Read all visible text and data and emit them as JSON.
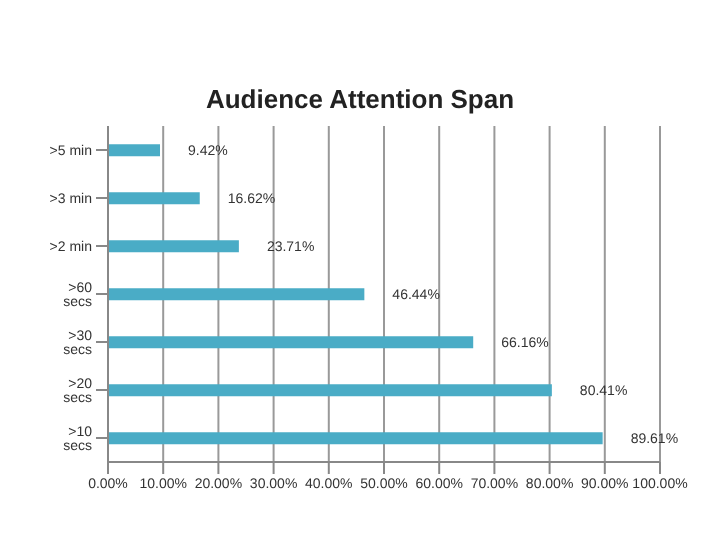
{
  "chart_data": {
    "type": "bar",
    "orientation": "horizontal",
    "title": "Audience Attention Span",
    "categories": [
      ">5 min",
      ">3 min",
      ">2 min",
      ">60 secs",
      ">30 secs",
      ">20 secs",
      ">10 secs"
    ],
    "values": [
      9.42,
      16.62,
      23.71,
      46.44,
      66.16,
      80.41,
      89.61
    ],
    "value_labels": [
      "9.42%",
      "16.62%",
      "23.71%",
      "46.44%",
      "66.16%",
      "80.41%",
      "89.61%"
    ],
    "color": "#4aacc6",
    "xlim": [
      0,
      100
    ],
    "xticks": [
      {
        "value": 0,
        "label": "0.00%"
      },
      {
        "value": 10,
        "label": "10.00%"
      },
      {
        "value": 20,
        "label": "20.00%"
      },
      {
        "value": 30,
        "label": "30.00%"
      },
      {
        "value": 40,
        "label": "40.00%"
      },
      {
        "value": 50,
        "label": "50.00%"
      },
      {
        "value": 60,
        "label": "60.00%"
      },
      {
        "value": 70,
        "label": "70.00%"
      },
      {
        "value": 80,
        "label": "80.00%"
      },
      {
        "value": 90,
        "label": "90.00%"
      },
      {
        "value": 100,
        "label": "100.00%"
      }
    ],
    "grid": "x"
  }
}
